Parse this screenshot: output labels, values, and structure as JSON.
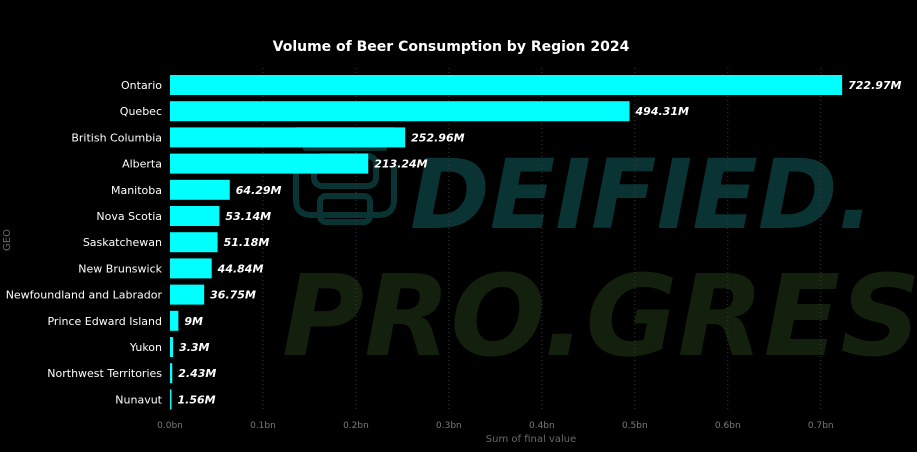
{
  "chart_data": {
    "type": "bar",
    "orientation": "horizontal",
    "title": "Volume of Beer Consumption by Region 2024",
    "xlabel": "Sum of final value",
    "ylabel": "GEO",
    "categories": [
      "Ontario",
      "Quebec",
      "British Columbia",
      "Alberta",
      "Manitoba",
      "Nova Scotia",
      "Saskatchewan",
      "New Brunswick",
      "Newfoundland and Labrador",
      "Prince Edward Island",
      "Yukon",
      "Northwest Territories",
      "Nunavut"
    ],
    "values": [
      722970000,
      494310000,
      252960000,
      213240000,
      64290000,
      53140000,
      51180000,
      44840000,
      36750000,
      9000000,
      3300000,
      2430000,
      1560000
    ],
    "data_labels": [
      "722.97M",
      "494.31M",
      "252.96M",
      "213.24M",
      "64.29M",
      "53.14M",
      "51.18M",
      "44.84M",
      "36.75M",
      "9M",
      "3.3M",
      "2.43M",
      "1.56M"
    ],
    "xticks": [
      0,
      100000000,
      200000000,
      300000000,
      400000000,
      500000000,
      600000000,
      700000000
    ],
    "xtick_labels": [
      "0.0bn",
      "0.1bn",
      "0.2bn",
      "0.3bn",
      "0.4bn",
      "0.5bn",
      "0.6bn",
      "0.7bn"
    ],
    "xlim": [
      0,
      725000000
    ],
    "grid": true,
    "bar_color": "#00FFFF",
    "background_color": "#000000",
    "watermark": {
      "line1": "DEIFIED.",
      "line2": "PRO.GRESS"
    }
  }
}
